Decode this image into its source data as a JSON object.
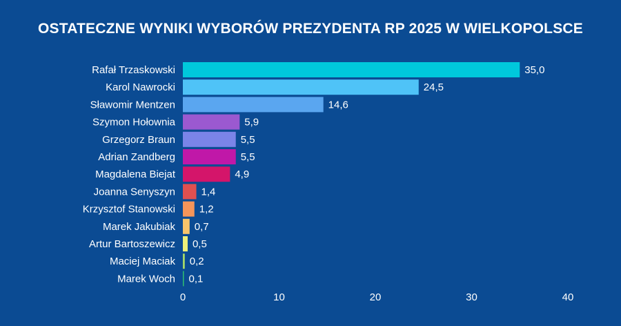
{
  "chart_data": {
    "type": "bar",
    "orientation": "horizontal",
    "title": "OSTATECZNE WYNIKI WYBORÓW PREZYDENTA RP 2025 W WIELKOPOLSCE",
    "categories": [
      "Rafał Trzaskowski",
      "Karol Nawrocki",
      "Sławomir Mentzen",
      "Szymon Hołownia",
      "Grzegorz Braun",
      "Adrian Zandberg",
      "Magdalena Biejat",
      "Joanna Senyszyn",
      "Krzysztof Stanowski",
      "Marek Jakubiak",
      "Artur Bartoszewicz",
      "Maciej Maciak",
      "Marek Woch"
    ],
    "values": [
      35.0,
      24.5,
      14.6,
      5.9,
      5.5,
      5.5,
      4.9,
      1.4,
      1.2,
      0.7,
      0.5,
      0.2,
      0.1
    ],
    "value_labels": [
      "35,0",
      "24,5",
      "14,6",
      "5,9",
      "5,5",
      "5,5",
      "4,9",
      "1,4",
      "1,2",
      "0,7",
      "0,5",
      "0,2",
      "0,1"
    ],
    "colors": [
      "#00c8dc",
      "#4fc3f7",
      "#5aa6f0",
      "#9b59d0",
      "#7b84e8",
      "#c018a8",
      "#d4156a",
      "#e05050",
      "#f5955a",
      "#f7c46b",
      "#eef07a",
      "#a5d86a",
      "#2fbf71"
    ],
    "xlim": [
      0,
      40
    ],
    "xticks": [
      "0",
      "10",
      "20",
      "30",
      "40"
    ],
    "xtick_values": [
      0,
      10,
      20,
      30,
      40
    ],
    "grid": false,
    "legend": "none"
  }
}
